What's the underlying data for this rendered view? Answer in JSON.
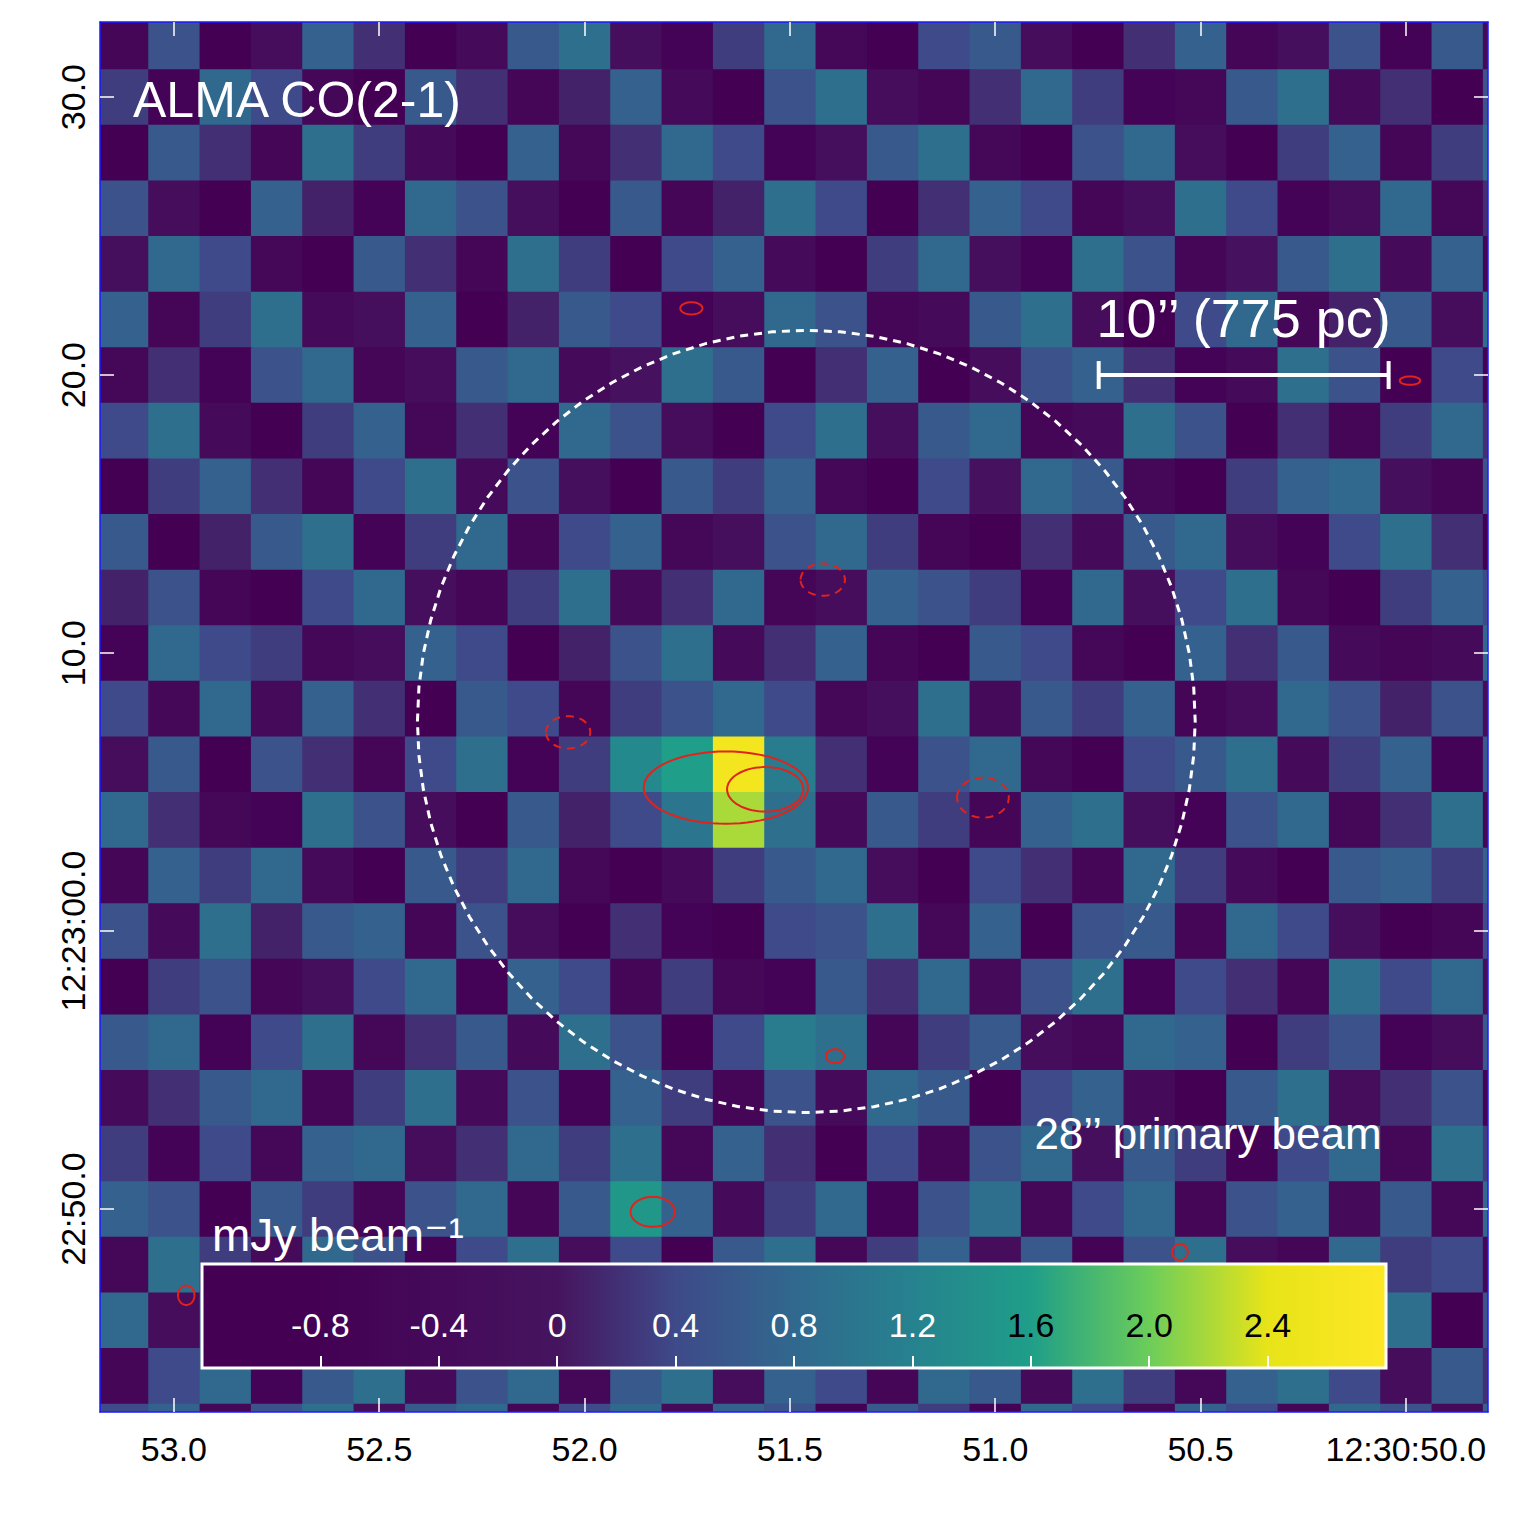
{
  "chart_data": {
    "type": "heatmap",
    "title": "ALMA CO(2-1)",
    "x": [
      53.125,
      53.0,
      52.875,
      52.75,
      52.625,
      52.5,
      52.375,
      52.25,
      52.125,
      52.0,
      51.875,
      51.75,
      51.625,
      51.5,
      51.375,
      51.25,
      51.125,
      51.0,
      50.875,
      50.75,
      50.625,
      50.5,
      50.375,
      50.25,
      50.125,
      50.0,
      49.875,
      49.75
    ],
    "y": [
      32,
      30,
      28,
      26,
      24,
      22,
      20,
      18,
      16,
      14,
      12,
      10,
      8,
      6,
      4,
      2,
      0,
      -2,
      -4,
      -6,
      -8,
      -10,
      -12,
      -14,
      -16,
      -18
    ],
    "values": [
      [
        -0.6,
        0.5,
        -0.8,
        -0.3,
        0.7,
        0.2,
        -0.9,
        -0.4,
        0.6,
        0.9,
        -0.2,
        -0.7,
        0.3,
        0.8,
        -0.5,
        -0.9,
        0.4,
        0.6,
        -0.3,
        -0.8,
        0.2,
        0.7,
        -0.6,
        -0.2,
        0.5,
        -0.7,
        0.6,
        -0.4
      ],
      [
        0.3,
        -0.7,
        0.8,
        0.4,
        -0.5,
        -0.9,
        0.6,
        0.2,
        -0.6,
        0.1,
        0.7,
        -0.4,
        -0.8,
        0.5,
        0.9,
        -0.3,
        -0.6,
        0.2,
        0.8,
        0.3,
        -0.7,
        -0.5,
        0.6,
        0.9,
        -0.4,
        0.2,
        -0.8,
        0.5
      ],
      [
        -0.8,
        0.6,
        0.2,
        -0.6,
        0.9,
        0.3,
        -0.4,
        -0.8,
        0.7,
        -0.5,
        0.2,
        0.8,
        0.4,
        -0.7,
        -0.2,
        0.6,
        0.9,
        -0.5,
        -0.9,
        0.5,
        0.8,
        -0.3,
        -0.8,
        0.3,
        0.7,
        -0.6,
        0.3,
        0.8
      ],
      [
        0.5,
        -0.3,
        -0.9,
        0.7,
        0.1,
        -0.7,
        0.8,
        0.5,
        -0.2,
        -0.9,
        0.6,
        -0.6,
        0.1,
        0.9,
        0.4,
        -0.8,
        0.2,
        0.7,
        0.4,
        -0.6,
        -0.2,
        0.9,
        0.4,
        -0.7,
        -0.3,
        0.8,
        -0.5,
        0.2
      ],
      [
        -0.2,
        0.8,
        0.4,
        -0.5,
        -0.8,
        0.6,
        0.2,
        -0.6,
        0.9,
        0.3,
        -0.8,
        0.4,
        0.7,
        -0.4,
        -0.9,
        0.3,
        0.8,
        -0.2,
        -0.7,
        0.9,
        0.5,
        -0.6,
        -0.1,
        0.6,
        0.9,
        -0.4,
        0.7,
        -0.6
      ],
      [
        0.7,
        -0.6,
        0.3,
        0.9,
        -0.4,
        -0.2,
        0.7,
        -0.9,
        0.1,
        0.6,
        0.4,
        -0.7,
        -0.3,
        0.8,
        0.5,
        -0.6,
        -0.4,
        0.6,
        0.9,
        -0.3,
        -0.8,
        0.4,
        0.8,
        -0.5,
        0.1,
        0.6,
        -0.3,
        0.9
      ],
      [
        -0.5,
        0.2,
        -0.7,
        0.5,
        0.8,
        -0.6,
        -0.3,
        0.6,
        0.8,
        -0.4,
        -0.1,
        0.9,
        0.6,
        -0.8,
        0.2,
        0.7,
        -0.9,
        -0.3,
        0.5,
        0.7,
        0.2,
        -0.7,
        -0.4,
        0.9,
        0.5,
        -0.8,
        0.4,
        -0.7
      ],
      [
        0.4,
        0.9,
        -0.4,
        -0.8,
        0.3,
        0.7,
        -0.5,
        0.2,
        -0.7,
        0.8,
        0.5,
        -0.3,
        -0.9,
        0.4,
        0.9,
        -0.2,
        0.6,
        0.8,
        -0.6,
        -0.4,
        0.9,
        0.5,
        -0.8,
        0.2,
        -0.6,
        0.3,
        0.8,
        0.2
      ],
      [
        -0.9,
        0.3,
        0.7,
        0.2,
        -0.6,
        0.4,
        0.9,
        -0.4,
        0.5,
        -0.2,
        -0.8,
        0.6,
        0.3,
        0.7,
        -0.5,
        -0.8,
        0.4,
        -0.1,
        0.8,
        0.6,
        -0.5,
        -0.9,
        0.3,
        0.7,
        0.8,
        -0.2,
        -0.6,
        0.5
      ],
      [
        0.6,
        -0.8,
        0.1,
        0.6,
        0.9,
        -0.7,
        0.3,
        0.8,
        -0.6,
        0.4,
        0.7,
        -0.5,
        -0.2,
        0.5,
        0.8,
        0.3,
        -0.6,
        -0.8,
        0.2,
        -0.4,
        0.6,
        0.8,
        -0.3,
        -0.7,
        0.4,
        0.9,
        0.2,
        -0.8
      ],
      [
        0.1,
        0.5,
        -0.6,
        -0.9,
        0.4,
        0.8,
        -0.2,
        -0.6,
        0.3,
        0.9,
        -0.4,
        0.2,
        0.8,
        -0.6,
        -0.3,
        0.7,
        0.5,
        0.3,
        -0.7,
        0.8,
        -0.2,
        0.4,
        0.9,
        -0.5,
        -0.8,
        0.3,
        0.7,
        0.4
      ],
      [
        -0.7,
        0.8,
        0.4,
        0.3,
        -0.5,
        -0.3,
        0.7,
        0.4,
        -0.8,
        0.1,
        0.5,
        0.9,
        -0.4,
        0.2,
        0.7,
        -0.6,
        -0.8,
        0.6,
        0.4,
        -0.5,
        -0.8,
        0.7,
        0.2,
        0.6,
        -0.4,
        -0.6,
        -0.4,
        0.8
      ],
      [
        0.4,
        -0.5,
        0.8,
        -0.4,
        0.7,
        0.2,
        -0.8,
        0.6,
        0.4,
        -0.6,
        0.3,
        0.5,
        0.8,
        0.4,
        -0.5,
        -0.2,
        0.9,
        -0.4,
        0.6,
        0.3,
        0.7,
        -0.6,
        -0.3,
        0.8,
        0.5,
        0.1,
        0.5,
        -0.3
      ],
      [
        -0.3,
        0.6,
        -0.8,
        0.5,
        0.2,
        -0.6,
        0.4,
        0.9,
        -0.7,
        0.3,
        1.3,
        1.6,
        2.6,
        1.1,
        0.2,
        -0.7,
        0.5,
        0.8,
        -0.5,
        -0.8,
        0.4,
        0.6,
        0.9,
        -0.4,
        0.3,
        0.7,
        -0.7,
        0.6
      ],
      [
        0.8,
        0.2,
        -0.5,
        -0.7,
        0.9,
        0.5,
        -0.3,
        -0.8,
        0.6,
        0.1,
        0.4,
        1.0,
        2.2,
        0.9,
        -0.4,
        0.6,
        0.3,
        -0.6,
        0.7,
        0.9,
        -0.2,
        -0.7,
        0.5,
        0.8,
        -0.5,
        0.2,
        0.9,
        -0.5
      ],
      [
        -0.6,
        0.7,
        0.3,
        0.8,
        -0.4,
        -0.9,
        0.6,
        0.3,
        0.8,
        -0.5,
        -0.8,
        -0.4,
        0.3,
        0.6,
        0.8,
        -0.3,
        -0.8,
        0.4,
        0.2,
        -0.6,
        0.8,
        0.3,
        -0.4,
        -0.9,
        0.6,
        0.7,
        0.3,
        0.7
      ],
      [
        0.5,
        -0.4,
        0.9,
        0.1,
        0.6,
        0.7,
        -0.6,
        0.5,
        -0.3,
        -0.8,
        0.2,
        -0.7,
        -0.9,
        0.4,
        0.5,
        0.9,
        -0.5,
        0.7,
        -0.8,
        0.5,
        0.6,
        -0.6,
        0.8,
        0.4,
        -0.2,
        -0.8,
        -0.6,
        0.4
      ],
      [
        -0.8,
        0.3,
        0.5,
        -0.6,
        -0.2,
        0.4,
        0.8,
        -0.7,
        0.7,
        0.4,
        -0.6,
        0.3,
        -0.5,
        -0.7,
        0.6,
        0.2,
        0.8,
        -0.4,
        0.5,
        0.9,
        -0.7,
        0.4,
        0.2,
        -0.6,
        0.9,
        0.4,
        0.8,
        -0.2
      ],
      [
        0.6,
        0.8,
        -0.7,
        0.4,
        0.9,
        -0.5,
        0.2,
        0.6,
        -0.4,
        0.9,
        0.5,
        -0.8,
        0.4,
        1.1,
        0.9,
        -0.6,
        0.3,
        0.6,
        -0.3,
        -0.5,
        0.8,
        0.7,
        -0.8,
        0.3,
        0.5,
        -0.7,
        -0.3,
        0.6
      ],
      [
        -0.4,
        0.2,
        0.6,
        0.8,
        -0.6,
        0.3,
        0.9,
        -0.4,
        0.5,
        -0.7,
        0.7,
        0.3,
        -0.6,
        0.5,
        -0.4,
        0.8,
        0.6,
        -0.9,
        0.4,
        0.7,
        -0.4,
        -0.8,
        0.6,
        0.9,
        -0.3,
        0.2,
        0.5,
        -0.7
      ],
      [
        0.3,
        -0.7,
        0.4,
        -0.5,
        0.7,
        0.8,
        -0.3,
        0.2,
        0.8,
        0.3,
        0.9,
        -0.5,
        0.7,
        0.2,
        -0.8,
        0.4,
        -0.6,
        0.5,
        0.8,
        -0.2,
        0.6,
        0.3,
        -0.7,
        0.4,
        0.8,
        -0.5,
        0.9,
        0.3
      ],
      [
        0.7,
        0.5,
        -0.8,
        0.6,
        0.3,
        -0.6,
        0.5,
        0.8,
        -0.6,
        0.6,
        1.5,
        0.7,
        -0.4,
        0.3,
        0.8,
        -0.7,
        0.5,
        0.9,
        -0.5,
        0.4,
        0.8,
        -0.6,
        0.5,
        0.7,
        -0.4,
        0.6,
        -0.5,
        0.8
      ],
      [
        -0.5,
        0.9,
        0.3,
        -0.4,
        0.8,
        0.5,
        -0.7,
        0.4,
        0.9,
        -0.3,
        0.4,
        -0.8,
        0.6,
        0.9,
        -0.5,
        0.3,
        0.7,
        -0.3,
        0.6,
        -0.7,
        0.5,
        0.9,
        -0.3,
        -0.6,
        0.8,
        0.3,
        0.4,
        -0.6
      ],
      [
        0.8,
        -0.3,
        0.6,
        0.9,
        -0.5,
        0.4,
        0.7,
        -0.8,
        0.3,
        0.7,
        -0.6,
        0.5,
        0.8,
        -0.4,
        0.6,
        0.9,
        -0.4,
        0.4,
        0.8,
        0.5,
        -0.6,
        0.3,
        0.8,
        0.5,
        -0.7,
        0.9,
        -0.8,
        0.5
      ],
      [
        -0.6,
        0.4,
        0.8,
        -0.7,
        0.6,
        0.9,
        -0.4,
        0.5,
        0.8,
        -0.5,
        0.6,
        0.9,
        -0.3,
        0.7,
        0.4,
        -0.6,
        0.8,
        0.6,
        -0.4,
        0.9,
        0.3,
        -0.5,
        0.7,
        0.9,
        0.4,
        -0.3,
        0.6,
        0.2
      ],
      [
        0.4,
        0.7,
        -0.5,
        0.5,
        0.9,
        -0.3,
        0.6,
        0.8,
        -0.6,
        0.4,
        0.8,
        -0.4,
        0.7,
        0.5,
        -0.8,
        0.6,
        0.3,
        -0.7,
        0.8,
        0.4,
        -0.5,
        0.7,
        0.4,
        -0.6,
        0.8,
        0.5,
        -0.4,
        0.7
      ]
    ],
    "xlim": [
      53.18,
      49.8
    ],
    "xticks": [
      {
        "value": 53,
        "label": "53.0"
      },
      52.5,
      {
        "value": 52,
        "label": "52.0"
      },
      51.5,
      {
        "value": 51,
        "label": "51.0"
      },
      50.5,
      {
        "value": 50,
        "label": "12:30:50.0"
      }
    ],
    "ylim": [
      -17.3,
      32.7
    ],
    "yticks": [
      {
        "value": 30,
        "label": "30.0"
      },
      {
        "value": 20,
        "label": "20.0"
      },
      {
        "value": 10,
        "label": "10.0"
      },
      {
        "value": 0,
        "label": "12:23:00.0"
      },
      {
        "value": -10,
        "label": "22:50.0"
      }
    ],
    "colorbar": {
      "label": "mJy beam⁻¹",
      "range": [
        -1.2,
        2.8
      ],
      "ticks": [
        -0.8,
        -0.4,
        0,
        0.4,
        0.8,
        1.2,
        1.6,
        {
          "value": 2,
          "label": "2.0"
        },
        2.4
      ]
    },
    "contours": [
      {
        "x": 51.656,
        "y": 5.16,
        "rx": 0.2,
        "ry": 1.3,
        "line_style": "solid"
      },
      {
        "x": 51.56,
        "y": 5.1,
        "rx": 0.093,
        "ry": 0.8,
        "line_style": "solid"
      },
      {
        "x": 51.42,
        "y": 12.64,
        "rx": 0.054,
        "ry": 0.58,
        "line_style": "dashed"
      },
      {
        "x": 52.04,
        "y": 7.15,
        "rx": 0.054,
        "ry": 0.58,
        "line_style": "dashed"
      },
      {
        "x": 51.03,
        "y": 4.8,
        "rx": 0.063,
        "ry": 0.72,
        "line_style": "dashed"
      },
      {
        "x": 51.834,
        "y": -10.1,
        "rx": 0.054,
        "ry": 0.54,
        "line_style": "solid"
      },
      {
        "x": 51.39,
        "y": -4.5,
        "rx": 0.022,
        "ry": 0.25,
        "line_style": "solid"
      },
      {
        "x": 51.74,
        "y": 22.4,
        "rx": 0.027,
        "ry": 0.22,
        "line_style": "solid"
      },
      {
        "x": 50.55,
        "y": -11.55,
        "rx": 0.019,
        "ry": 0.29,
        "line_style": "solid"
      },
      {
        "x": 49.99,
        "y": 19.8,
        "rx": 0.025,
        "ry": 0.15,
        "line_style": "solid"
      },
      {
        "x": 52.97,
        "y": -13.1,
        "rx": 0.02,
        "ry": 0.35,
        "line_style": "solid"
      }
    ],
    "primary_beam": {
      "x": 51.46,
      "y": 7.54,
      "rx": 0.947,
      "ry": 14.07,
      "label": "28’’ primary beam"
    },
    "scale_bar": {
      "x0": 50.748,
      "x1": 50.042,
      "y": 20.0,
      "label": "10’’ (775 pc)"
    },
    "grid": false
  }
}
